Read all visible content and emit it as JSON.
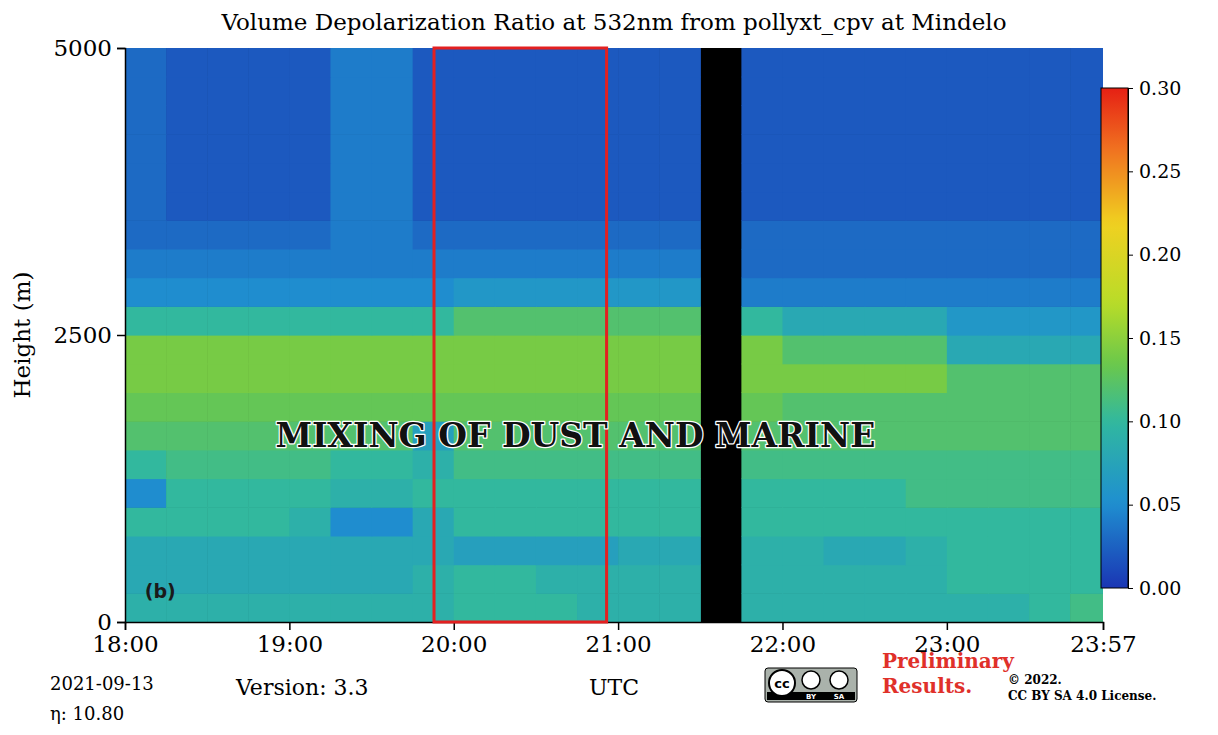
{
  "chart_data": {
    "type": "heatmap",
    "title": "Volume Depolarization Ratio at 532nm from pollyxt_cpv at Mindelo",
    "x_label": "UTC",
    "y_label": "Height (m)",
    "x": [
      18,
      18.25,
      18.5,
      18.75,
      19,
      19.25,
      19.5,
      19.75,
      20,
      20.25,
      20.5,
      20.75,
      21,
      21.25,
      21.5,
      21.75,
      22,
      22.25,
      22.5,
      22.75,
      23,
      23.25,
      23.5,
      23.75
    ],
    "y": [
      0,
      250,
      500,
      750,
      1000,
      1250,
      1500,
      1750,
      2000,
      2250,
      2500,
      2750,
      3000,
      3250,
      3500,
      3750,
      4000,
      4250,
      4500,
      4750
    ],
    "values": [
      [
        0.09,
        0.09,
        0.09,
        0.09,
        0.09,
        0.09,
        0.09,
        0.09,
        0.1,
        0.1,
        0.1,
        0.09,
        0.09,
        0.09,
        null,
        0.09,
        0.09,
        0.09,
        0.09,
        0.09,
        0.09,
        0.09,
        0.1,
        0.11
      ],
      [
        0.08,
        0.08,
        0.08,
        0.08,
        0.08,
        0.08,
        0.08,
        0.09,
        0.1,
        0.1,
        0.09,
        0.09,
        0.09,
        0.09,
        null,
        0.09,
        0.09,
        0.09,
        0.09,
        0.09,
        0.1,
        0.1,
        0.1,
        0.1
      ],
      [
        0.08,
        0.08,
        0.08,
        0.08,
        0.08,
        0.08,
        0.08,
        0.08,
        0.07,
        0.07,
        0.07,
        0.07,
        0.08,
        0.08,
        null,
        0.09,
        0.09,
        0.08,
        0.08,
        0.09,
        0.1,
        0.1,
        0.1,
        0.1
      ],
      [
        0.1,
        0.1,
        0.1,
        0.1,
        0.09,
        0.05,
        0.05,
        0.08,
        0.1,
        0.1,
        0.1,
        0.1,
        0.1,
        0.1,
        null,
        0.1,
        0.1,
        0.1,
        0.1,
        0.1,
        0.1,
        0.1,
        0.1,
        0.1
      ],
      [
        0.05,
        0.1,
        0.1,
        0.1,
        0.1,
        0.09,
        0.09,
        0.1,
        0.1,
        0.1,
        0.1,
        0.1,
        0.1,
        0.1,
        null,
        0.1,
        0.1,
        0.1,
        0.1,
        0.11,
        0.11,
        0.11,
        0.11,
        0.11
      ],
      [
        0.1,
        0.11,
        0.11,
        0.11,
        0.11,
        0.1,
        0.1,
        0.09,
        0.11,
        0.11,
        0.11,
        0.11,
        0.11,
        0.11,
        null,
        0.11,
        0.11,
        0.11,
        0.11,
        0.11,
        0.11,
        0.11,
        0.11,
        0.11
      ],
      [
        0.12,
        0.12,
        0.12,
        0.12,
        0.12,
        0.12,
        0.12,
        0.07,
        0.12,
        0.12,
        0.12,
        0.12,
        0.12,
        0.12,
        null,
        0.12,
        0.12,
        0.12,
        0.12,
        0.12,
        0.12,
        0.12,
        0.12,
        0.12
      ],
      [
        0.13,
        0.13,
        0.13,
        0.13,
        0.13,
        0.13,
        0.13,
        0.13,
        0.13,
        0.13,
        0.13,
        0.13,
        0.13,
        0.13,
        null,
        0.13,
        0.12,
        0.12,
        0.12,
        0.12,
        0.12,
        0.12,
        0.12,
        0.12
      ],
      [
        0.14,
        0.14,
        0.14,
        0.14,
        0.14,
        0.14,
        0.14,
        0.14,
        0.14,
        0.14,
        0.14,
        0.14,
        0.14,
        0.14,
        null,
        0.14,
        0.14,
        0.14,
        0.14,
        0.14,
        0.12,
        0.12,
        0.12,
        0.12
      ],
      [
        0.14,
        0.14,
        0.14,
        0.14,
        0.14,
        0.14,
        0.14,
        0.14,
        0.14,
        0.14,
        0.14,
        0.14,
        0.14,
        0.14,
        null,
        0.14,
        0.12,
        0.12,
        0.12,
        0.12,
        0.08,
        0.08,
        0.08,
        0.08
      ],
      [
        0.1,
        0.1,
        0.1,
        0.1,
        0.1,
        0.1,
        0.1,
        0.1,
        0.12,
        0.12,
        0.12,
        0.12,
        0.12,
        0.12,
        null,
        0.1,
        0.08,
        0.08,
        0.08,
        0.08,
        0.06,
        0.06,
        0.06,
        0.06
      ],
      [
        0.05,
        0.05,
        0.05,
        0.05,
        0.05,
        0.05,
        0.05,
        0.05,
        0.06,
        0.06,
        0.06,
        0.06,
        0.06,
        0.06,
        null,
        0.04,
        0.04,
        0.04,
        0.04,
        0.04,
        0.04,
        0.04,
        0.04,
        0.04
      ],
      [
        0.04,
        0.04,
        0.04,
        0.04,
        0.04,
        0.04,
        0.04,
        0.04,
        0.04,
        0.04,
        0.04,
        0.04,
        0.04,
        0.04,
        null,
        0.03,
        0.03,
        0.03,
        0.03,
        0.03,
        0.03,
        0.03,
        0.03,
        0.03
      ],
      [
        0.03,
        0.03,
        0.03,
        0.03,
        0.03,
        0.04,
        0.04,
        0.03,
        0.03,
        0.03,
        0.03,
        0.03,
        0.03,
        0.03,
        null,
        0.03,
        0.03,
        0.03,
        0.03,
        0.03,
        0.03,
        0.03,
        0.03,
        0.03
      ],
      [
        0.03,
        0.02,
        0.02,
        0.02,
        0.02,
        0.04,
        0.04,
        0.02,
        0.02,
        0.02,
        0.02,
        0.02,
        0.02,
        0.02,
        null,
        0.02,
        0.02,
        0.02,
        0.02,
        0.02,
        0.02,
        0.02,
        0.02,
        0.02
      ],
      [
        0.03,
        0.02,
        0.02,
        0.02,
        0.02,
        0.04,
        0.04,
        0.02,
        0.02,
        0.02,
        0.02,
        0.02,
        0.02,
        0.02,
        null,
        0.02,
        0.02,
        0.02,
        0.02,
        0.02,
        0.02,
        0.02,
        0.02,
        0.02
      ],
      [
        0.03,
        0.02,
        0.02,
        0.02,
        0.02,
        0.04,
        0.04,
        0.02,
        0.02,
        0.02,
        0.02,
        0.02,
        0.02,
        0.02,
        null,
        0.02,
        0.02,
        0.02,
        0.02,
        0.02,
        0.02,
        0.02,
        0.02,
        0.02
      ],
      [
        0.03,
        0.02,
        0.02,
        0.02,
        0.02,
        0.04,
        0.04,
        0.02,
        0.02,
        0.02,
        0.02,
        0.02,
        0.02,
        0.02,
        null,
        0.02,
        0.02,
        0.02,
        0.02,
        0.02,
        0.02,
        0.02,
        0.02,
        0.02
      ],
      [
        0.03,
        0.02,
        0.02,
        0.02,
        0.02,
        0.04,
        0.04,
        0.02,
        0.02,
        0.02,
        0.02,
        0.02,
        0.02,
        0.02,
        null,
        0.02,
        0.02,
        0.02,
        0.02,
        0.02,
        0.02,
        0.02,
        0.02,
        0.02
      ],
      [
        0.03,
        0.02,
        0.02,
        0.02,
        0.02,
        0.04,
        0.04,
        0.02,
        0.02,
        0.02,
        0.02,
        0.02,
        0.02,
        0.02,
        null,
        0.02,
        0.02,
        0.02,
        0.02,
        0.02,
        0.02,
        0.02,
        0.02,
        0.02
      ]
    ],
    "xlim": [
      18,
      23.95
    ],
    "ylim": [
      0,
      5000
    ],
    "xticks": [
      {
        "value": 18,
        "label": "18:00"
      },
      {
        "value": 19,
        "label": "19:00"
      },
      {
        "value": 20,
        "label": "20:00"
      },
      {
        "value": 21,
        "label": "21:00"
      },
      {
        "value": 22,
        "label": "22:00"
      },
      {
        "value": 23,
        "label": "23:00"
      },
      {
        "value": 23.95,
        "label": "23:57"
      }
    ],
    "yticks": [
      0,
      2500,
      5000
    ],
    "colorbar": {
      "range": [
        0,
        0.3
      ],
      "ticks": [
        {
          "value": 0,
          "label": "0.00"
        },
        {
          "value": 0.05,
          "label": "0.05"
        },
        {
          "value": 0.1,
          "label": "0.10"
        },
        {
          "value": 0.15,
          "label": "0.15"
        },
        {
          "value": 0.2,
          "label": "0.20"
        },
        {
          "value": 0.25,
          "label": "0.25"
        },
        {
          "value": 0.3,
          "label": "0.30"
        }
      ]
    },
    "annotations": [
      {
        "text": "MIXING OF DUST AND MARINE",
        "x": 20.74,
        "y": 1600
      },
      {
        "text": "(b)",
        "x": 18.12,
        "y": 210
      }
    ],
    "highlight": {
      "x": [
        19.88,
        20.93
      ],
      "y": [
        0,
        5000
      ],
      "color": "#e32020"
    },
    "footer": {
      "date": "2021-09-13",
      "eta": "η: 10.80",
      "version": "Version: 3.3",
      "status": "Preliminary Results.",
      "copyright": "© 2022.",
      "license": "CC BY SA 4.0 License.",
      "badge": [
        "cc",
        "BY",
        "SA"
      ]
    }
  }
}
